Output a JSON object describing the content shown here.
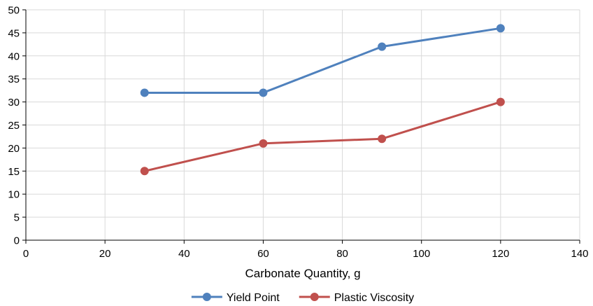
{
  "chart_data": {
    "type": "line",
    "title": "",
    "xlabel": "Carbonate Quantity, g",
    "ylabel": "",
    "xlim": [
      0,
      140
    ],
    "ylim": [
      0,
      50
    ],
    "x_ticks": [
      0,
      20,
      40,
      60,
      80,
      100,
      120,
      140
    ],
    "y_ticks": [
      0,
      5,
      10,
      15,
      20,
      25,
      30,
      35,
      40,
      45,
      50
    ],
    "grid": true,
    "legend_position": "bottom",
    "series": [
      {
        "name": "Yield Point",
        "color": "#4F81BD",
        "x": [
          30,
          60,
          90,
          120
        ],
        "y": [
          32,
          32,
          42,
          46
        ]
      },
      {
        "name": "Plastic Viscosity",
        "color": "#C0504D",
        "x": [
          30,
          60,
          90,
          120
        ],
        "y": [
          15,
          21,
          22,
          30
        ]
      }
    ]
  }
}
